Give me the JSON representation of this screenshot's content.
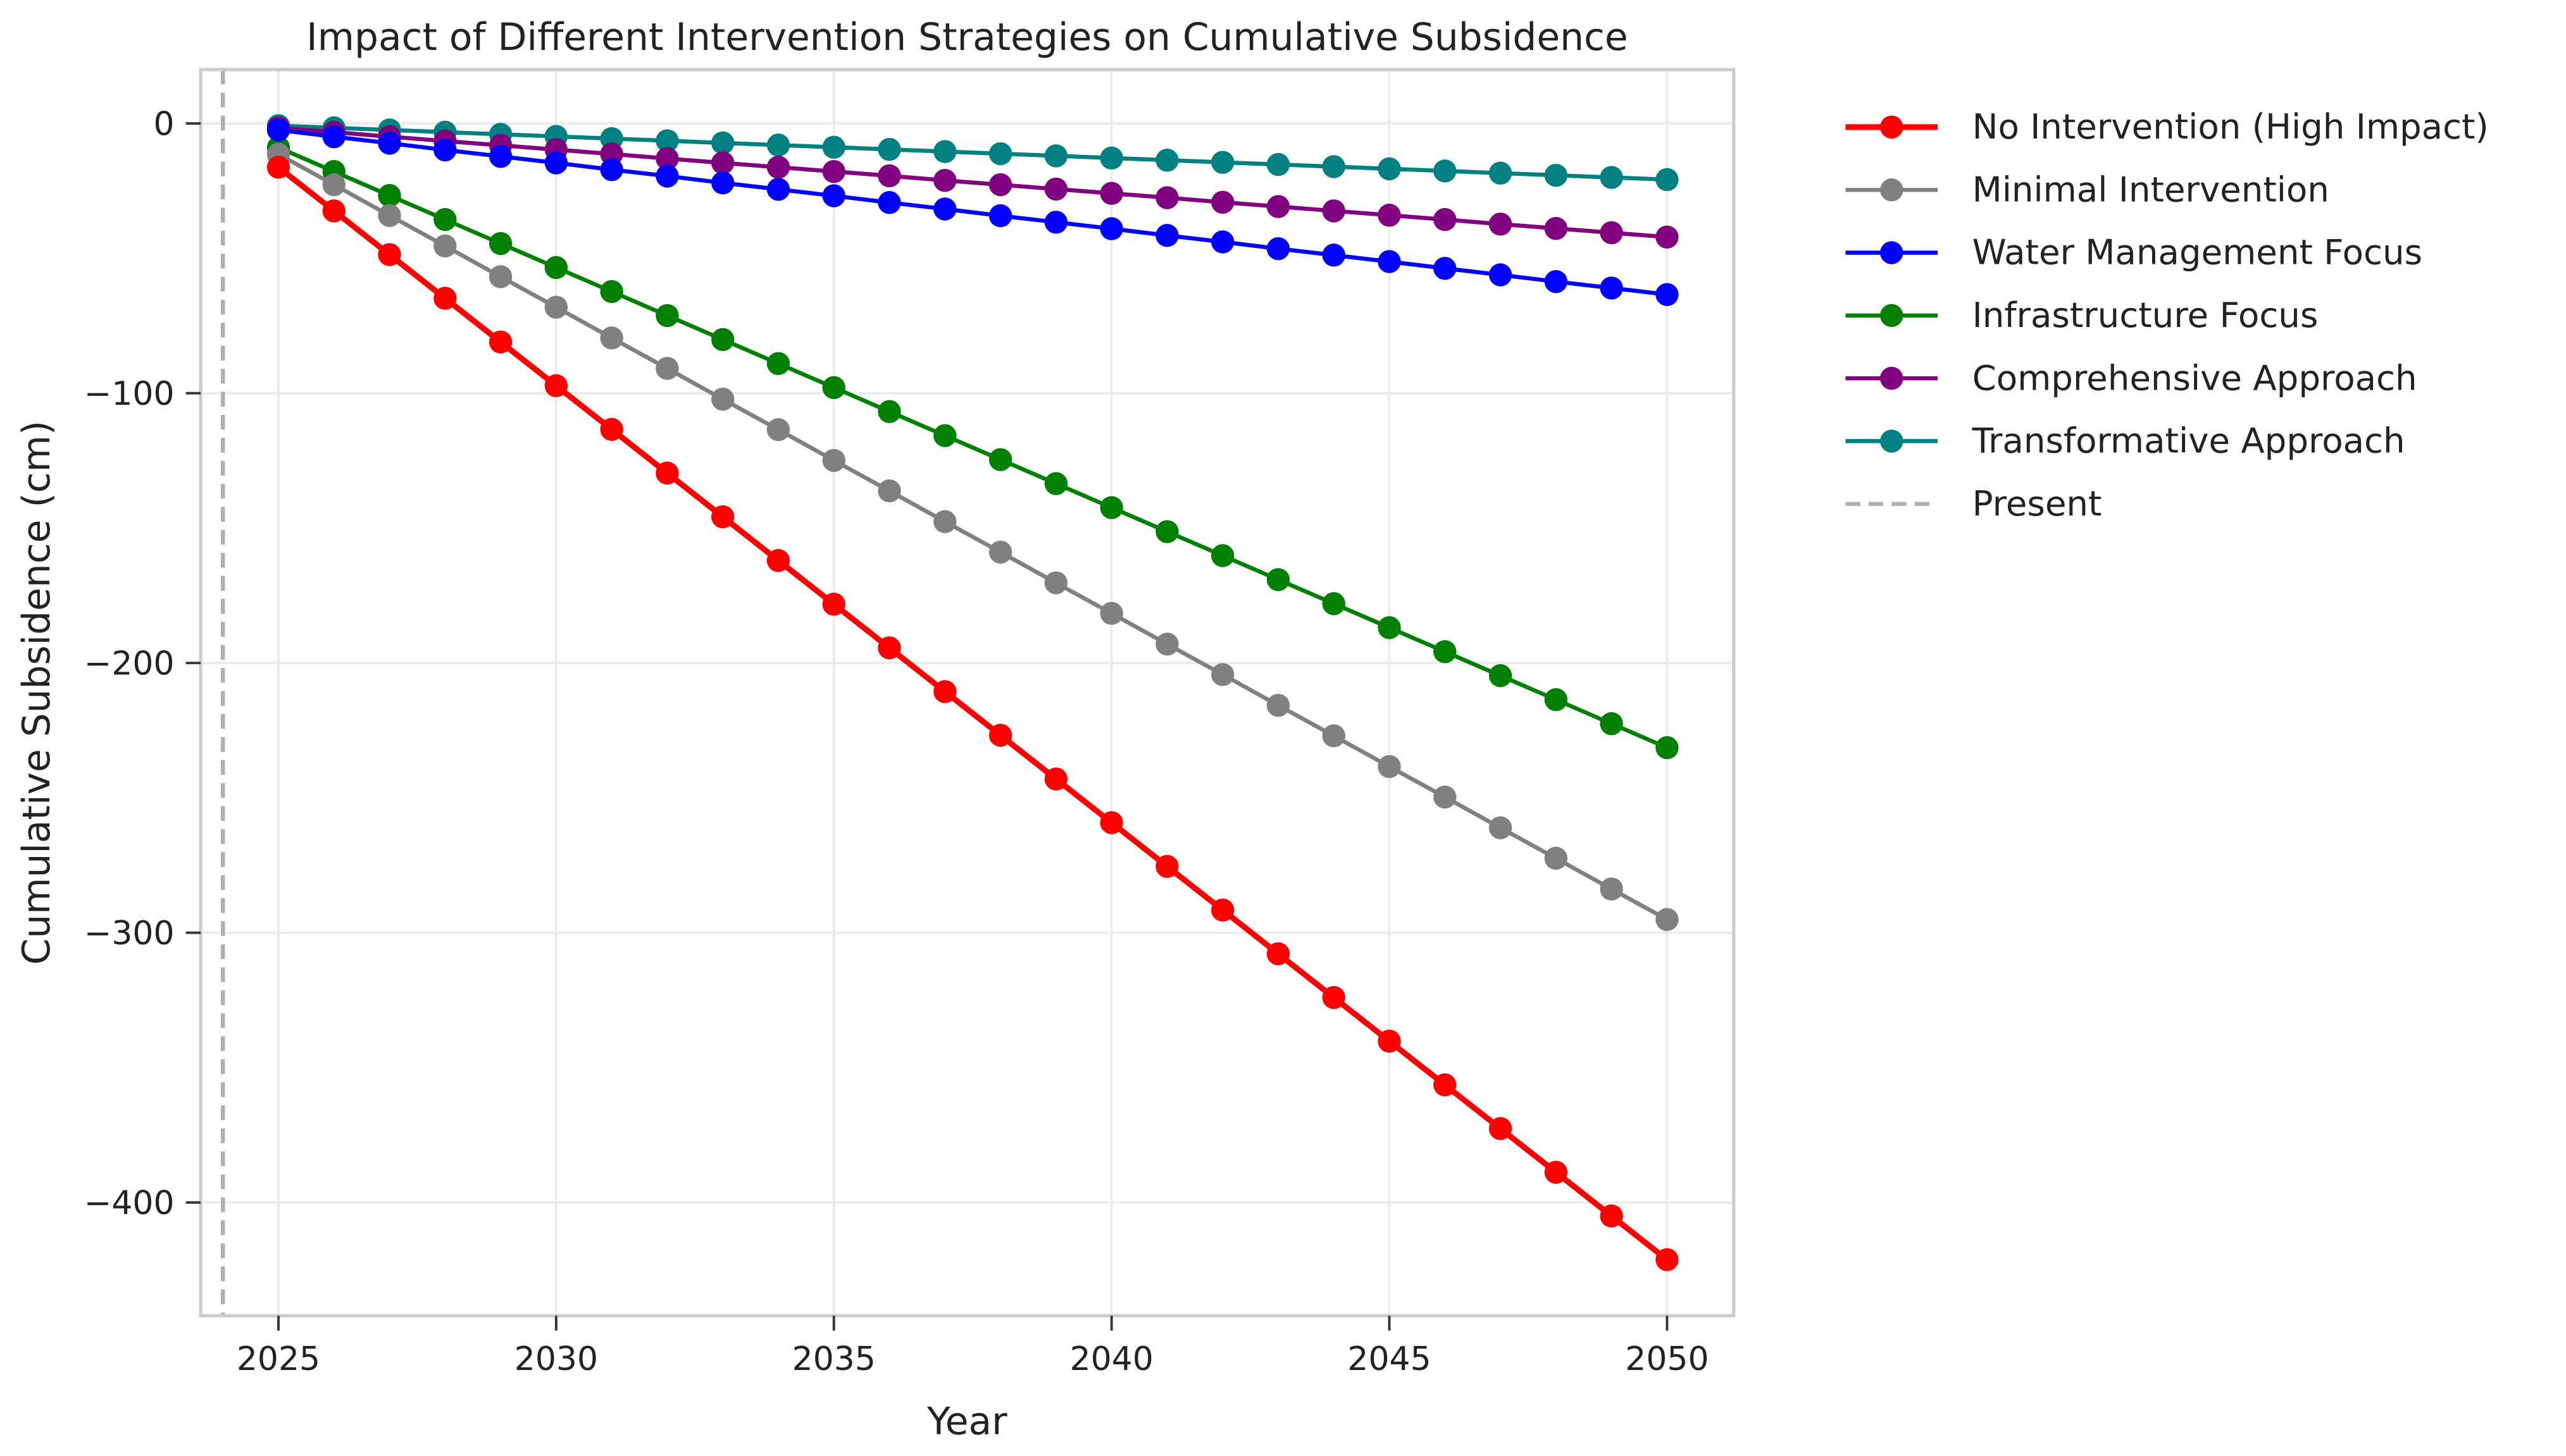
{
  "chart_data": {
    "type": "line",
    "title": "Impact of Different Intervention Strategies on Cumulative Subsidence",
    "xlabel": "Year",
    "ylabel": "Cumulative Subsidence (cm)",
    "xlim": [
      2023.6,
      2051.2
    ],
    "ylim": [
      -442,
      20
    ],
    "xticks": [
      2025,
      2030,
      2035,
      2040,
      2045,
      2050
    ],
    "yticks": [
      0,
      -100,
      -200,
      -300,
      -400
    ],
    "ytick_labels": [
      "0",
      "−100",
      "−200",
      "−300",
      "−400"
    ],
    "grid": true,
    "legend_position": "outside-right",
    "x": [
      2025,
      2026,
      2027,
      2028,
      2029,
      2030,
      2031,
      2032,
      2033,
      2034,
      2035,
      2036,
      2037,
      2038,
      2039,
      2040,
      2041,
      2042,
      2043,
      2044,
      2045,
      2046,
      2047,
      2048,
      2049,
      2050
    ],
    "series": [
      {
        "name": "No Intervention (High Impact)",
        "color": "#ff0000",
        "values": [
          -16.2,
          -32.4,
          -48.6,
          -64.8,
          -81,
          -97.2,
          -113.4,
          -129.6,
          -145.8,
          -162,
          -178.2,
          -194.4,
          -210.6,
          -226.8,
          -243,
          -259.2,
          -275.4,
          -291.6,
          -307.8,
          -324,
          -340.2,
          -356.4,
          -372.6,
          -388.8,
          -405,
          -421.2
        ]
      },
      {
        "name": "Minimal Intervention",
        "color": "#808080",
        "values": [
          -11.4,
          -22.7,
          -34.1,
          -45.4,
          -56.8,
          -68.1,
          -79.5,
          -90.8,
          -102.2,
          -113.5,
          -124.9,
          -136.2,
          -147.6,
          -158.9,
          -170.3,
          -181.6,
          -193,
          -204.3,
          -215.7,
          -227,
          -238.4,
          -249.7,
          -261.1,
          -272.4,
          -283.8,
          -295.1
        ]
      },
      {
        "name": "Water Management Focus",
        "color": "#0000ff",
        "values": [
          -2.4,
          -4.9,
          -7.3,
          -9.8,
          -12.2,
          -14.6,
          -17.1,
          -19.5,
          -22,
          -24.4,
          -26.8,
          -29.3,
          -31.7,
          -34.2,
          -36.6,
          -39,
          -41.5,
          -43.9,
          -46.4,
          -48.8,
          -51.2,
          -53.7,
          -56.1,
          -58.6,
          -61,
          -63.4
        ]
      },
      {
        "name": "Infrastructure Focus",
        "color": "#008000",
        "values": [
          -8.9,
          -17.8,
          -26.7,
          -35.6,
          -44.5,
          -53.4,
          -62.3,
          -71.2,
          -80.1,
          -89,
          -97.9,
          -106.8,
          -115.7,
          -124.6,
          -133.5,
          -142.4,
          -151.3,
          -160.2,
          -169.1,
          -178,
          -186.9,
          -195.8,
          -204.7,
          -213.6,
          -222.5,
          -231.4
        ]
      },
      {
        "name": "Comprehensive Approach",
        "color": "#800080",
        "values": [
          -1.6,
          -3.2,
          -4.9,
          -6.5,
          -8.1,
          -9.7,
          -11.3,
          -13,
          -14.6,
          -16.2,
          -17.8,
          -19.4,
          -21.1,
          -22.7,
          -24.3,
          -25.9,
          -27.5,
          -29.2,
          -30.8,
          -32.4,
          -34,
          -35.6,
          -37.3,
          -38.9,
          -40.5,
          -42.1
        ]
      },
      {
        "name": "Transformative Approach",
        "color": "#008080",
        "values": [
          -0.8,
          -1.6,
          -2.4,
          -3.2,
          -4,
          -4.8,
          -5.6,
          -6.4,
          -7.2,
          -8,
          -8.8,
          -9.6,
          -10.4,
          -11.2,
          -12,
          -12.8,
          -13.6,
          -14.4,
          -15.2,
          -16,
          -16.8,
          -17.6,
          -18.4,
          -19.2,
          -20,
          -20.8
        ]
      }
    ],
    "vline": {
      "name": "Present",
      "x": 2024,
      "color": "#b0b0b0",
      "style": "dashed"
    }
  }
}
